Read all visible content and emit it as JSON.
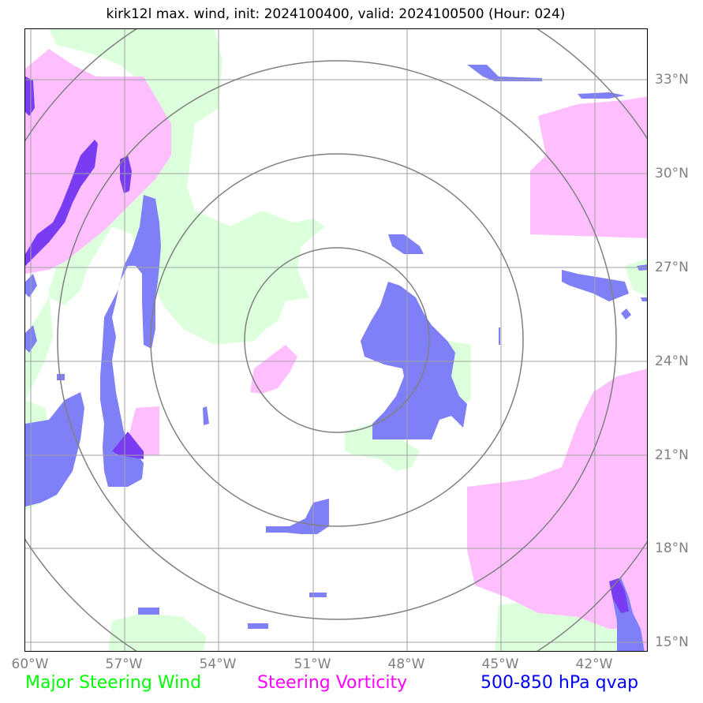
{
  "title": "kirk12l max. wind, init: 2024100400, valid: 2024100500 (Hour: 024)",
  "map": {
    "lon_range": [
      -60.2,
      -40.7
    ],
    "lat_range": [
      14.6,
      34.6
    ],
    "lon_ticks": [
      {
        "value": -60,
        "label": "60°W"
      },
      {
        "value": -57,
        "label": "57°W"
      },
      {
        "value": -54,
        "label": "54°W"
      },
      {
        "value": -51,
        "label": "51°W"
      },
      {
        "value": -48,
        "label": "48°W"
      },
      {
        "value": -45,
        "label": "45°W"
      },
      {
        "value": -42,
        "label": "42°W"
      }
    ],
    "lat_ticks": [
      {
        "value": 33,
        "label": "33°N"
      },
      {
        "value": 30,
        "label": "30°N"
      },
      {
        "value": 27,
        "label": "27°N"
      },
      {
        "value": 24,
        "label": "24°N"
      },
      {
        "value": 21,
        "label": "21°N"
      },
      {
        "value": 18,
        "label": "18°N"
      },
      {
        "value": 15,
        "label": "15°N"
      }
    ],
    "range_ring_center": {
      "lon": -50.0,
      "lat": 24.7
    },
    "range_ring_radii_deg": [
      2.95,
      5.95,
      8.9,
      11.8
    ]
  },
  "legend": [
    {
      "label": "Major Steering Wind",
      "color": "#00ff00"
    },
    {
      "label": "Steering Vorticity",
      "color": "#ff00ff"
    },
    {
      "label": "500-850 hPa qvap",
      "color": "#0000ff"
    }
  ],
  "colors": {
    "steering_wind_fill": "#dcffdc",
    "vorticity_fill": "#ffbfff",
    "qvap_fill": "#7f7ff8",
    "qvap_dark": "#7a3cf2",
    "grid": "#a0a0a0",
    "rings": "#808080"
  }
}
